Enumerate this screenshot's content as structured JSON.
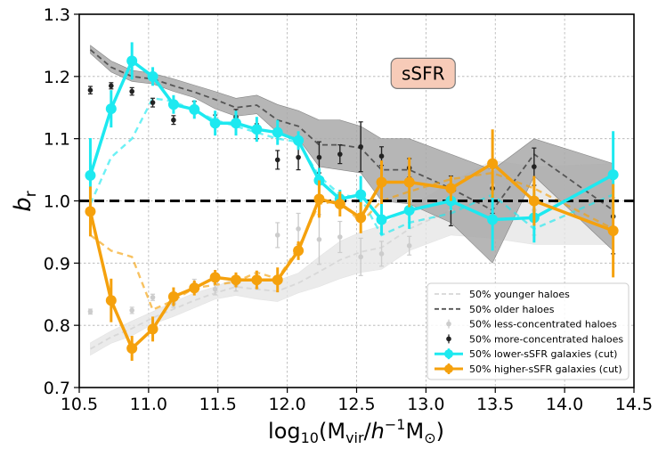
{
  "chart_data": {
    "type": "line",
    "xlabel": "log10(Mvir/h−1M⊙)",
    "xlabel_parts": {
      "prefix": "log",
      "sub10": "10",
      "open": "(M",
      "subvir": "vir",
      "slash": "/",
      "h": "h",
      "sup": "−1",
      "m": "M",
      "sun": "⊙",
      "close": ")"
    },
    "ylabel": "br",
    "ylabel_parts": {
      "main": "b",
      "sub": "r"
    },
    "xlim": [
      10.5,
      14.5
    ],
    "ylim": [
      0.7,
      1.3
    ],
    "xticks": [
      10.5,
      11.0,
      11.5,
      12.0,
      12.5,
      13.0,
      13.5,
      14.0,
      14.5
    ],
    "xtick_labels": [
      "10.5",
      "11.0",
      "11.5",
      "12.0",
      "12.5",
      "13.0",
      "13.5",
      "14.0",
      "14.5"
    ],
    "yticks": [
      0.7,
      0.8,
      0.9,
      1.0,
      1.1,
      1.2,
      1.3
    ],
    "ytick_labels": [
      "0.7",
      "0.8",
      "0.9",
      "1.0",
      "1.1",
      "1.2",
      "1.3"
    ],
    "grid": true,
    "legend_position": "lower-right",
    "annotation": {
      "text": "sSFR",
      "x": 12.98,
      "y": 1.205,
      "fill": "#f7cbb8",
      "edge": "#7a7a7a"
    },
    "reference_line": {
      "y": 1.0,
      "color": "#000000",
      "style": "dashed"
    },
    "series": [
      {
        "name": "50% younger haloes",
        "kind": "band_line",
        "color": "#e6e6e6",
        "line_color": "#d8d8d8",
        "x": [
          10.58,
          10.73,
          10.88,
          11.03,
          11.18,
          11.33,
          11.48,
          11.63,
          11.78,
          11.93,
          12.08,
          12.23,
          12.38,
          12.53,
          12.68,
          12.88,
          13.18,
          13.48,
          13.78,
          14.35
        ],
        "values": [
          0.762,
          0.781,
          0.795,
          0.812,
          0.826,
          0.84,
          0.852,
          0.862,
          0.858,
          0.855,
          0.868,
          0.886,
          0.905,
          0.918,
          0.925,
          0.955,
          0.985,
          1.005,
          0.995,
          1.0
        ],
        "band_lo": [
          0.752,
          0.771,
          0.783,
          0.802,
          0.814,
          0.828,
          0.842,
          0.848,
          0.842,
          0.838,
          0.852,
          0.862,
          0.875,
          0.885,
          0.89,
          0.92,
          0.945,
          0.94,
          0.93,
          0.93
        ],
        "band_hi": [
          0.772,
          0.791,
          0.807,
          0.822,
          0.838,
          0.852,
          0.862,
          0.876,
          0.874,
          0.872,
          0.884,
          0.91,
          0.935,
          0.95,
          0.96,
          0.99,
          1.03,
          1.065,
          1.055,
          1.06
        ]
      },
      {
        "name": "50% older haloes",
        "kind": "band_line",
        "color": "#a9a9a9",
        "line_color": "#555555",
        "x": [
          10.58,
          10.73,
          10.88,
          11.03,
          11.18,
          11.33,
          11.48,
          11.63,
          11.78,
          11.93,
          12.08,
          12.23,
          12.38,
          12.53,
          12.68,
          12.88,
          13.18,
          13.48,
          13.78,
          14.35
        ],
        "values": [
          1.243,
          1.215,
          1.2,
          1.196,
          1.185,
          1.175,
          1.163,
          1.15,
          1.154,
          1.13,
          1.12,
          1.09,
          1.09,
          1.085,
          1.05,
          1.05,
          1.02,
          0.985,
          1.075,
          0.985
        ],
        "band_lo": [
          1.237,
          1.207,
          1.192,
          1.188,
          1.176,
          1.166,
          1.148,
          1.136,
          1.14,
          1.11,
          1.1,
          1.055,
          1.05,
          1.045,
          1.0,
          0.995,
          0.965,
          0.9,
          1.04,
          0.92
        ],
        "band_hi": [
          1.25,
          1.225,
          1.21,
          1.205,
          1.196,
          1.186,
          1.176,
          1.165,
          1.17,
          1.155,
          1.145,
          1.13,
          1.13,
          1.12,
          1.1,
          1.1,
          1.075,
          1.05,
          1.1,
          1.06
        ]
      },
      {
        "name": "50% less-concentrated haloes",
        "kind": "errorbar_points",
        "color": "#cccccc",
        "x": [
          10.58,
          10.73,
          10.88,
          11.03,
          11.18,
          11.33,
          11.48,
          11.63,
          11.78,
          11.93,
          12.08,
          12.23,
          12.38,
          12.53,
          12.68,
          12.88,
          13.18,
          13.48,
          13.78,
          14.35
        ],
        "values": [
          0.822,
          0.838,
          0.824,
          0.845,
          0.835,
          0.866,
          0.858,
          0.865,
          0.872,
          0.945,
          0.955,
          0.938,
          0.942,
          0.91,
          0.915,
          0.928,
          1.005,
          1.025,
          0.985,
          0.975
        ],
        "err": [
          0.004,
          0.005,
          0.005,
          0.005,
          0.006,
          0.008,
          0.009,
          0.01,
          0.012,
          0.02,
          0.025,
          0.04,
          0.025,
          0.03,
          0.02,
          0.015,
          0.02,
          0.025,
          0.04,
          0.03
        ]
      },
      {
        "name": "50% more-concentrated haloes",
        "kind": "errorbar_points",
        "color": "#222222",
        "x": [
          10.58,
          10.73,
          10.88,
          11.03,
          11.18,
          11.33,
          11.48,
          11.63,
          11.78,
          11.93,
          12.08,
          12.23,
          12.38,
          12.53,
          12.68,
          12.88,
          13.18,
          13.48,
          13.78,
          14.35
        ],
        "values": [
          1.178,
          1.185,
          1.176,
          1.158,
          1.13,
          1.15,
          1.128,
          1.135,
          1.112,
          1.066,
          1.07,
          1.07,
          1.075,
          1.087,
          1.072,
          1.053,
          1.0,
          1.02,
          1.055,
          0.975
        ],
        "err": [
          0.006,
          0.005,
          0.006,
          0.007,
          0.007,
          0.01,
          0.01,
          0.012,
          0.012,
          0.015,
          0.02,
          0.025,
          0.015,
          0.04,
          0.015,
          0.015,
          0.04,
          0.04,
          0.03,
          0.06
        ]
      },
      {
        "name": "50% lower-sSFR galaxies (cut)",
        "kind": "errorbar_line",
        "color": "#1de9f0",
        "x": [
          10.58,
          10.73,
          10.88,
          11.03,
          11.18,
          11.33,
          11.48,
          11.63,
          11.78,
          11.93,
          12.08,
          12.23,
          12.38,
          12.53,
          12.68,
          12.88,
          13.18,
          13.48,
          13.78,
          14.35
        ],
        "values": [
          1.041,
          1.148,
          1.225,
          1.2,
          1.155,
          1.147,
          1.125,
          1.125,
          1.115,
          1.11,
          1.097,
          1.033,
          1.003,
          1.01,
          0.97,
          0.985,
          1.0,
          0.97,
          0.973,
          1.042
        ],
        "err": [
          0.06,
          0.03,
          0.03,
          0.015,
          0.015,
          0.015,
          0.02,
          0.02,
          0.02,
          0.02,
          0.015,
          0.02,
          0.015,
          0.03,
          0.025,
          0.03,
          0.015,
          0.05,
          0.04,
          0.07
        ],
        "dashed_x": [
          10.58,
          10.73,
          10.88,
          11.03,
          11.18,
          11.33,
          11.48,
          11.63,
          11.78,
          11.93,
          12.08,
          12.23,
          12.38,
          12.53,
          12.68,
          12.88,
          13.18,
          13.48,
          13.78,
          14.35
        ],
        "dashed_values": [
          0.995,
          1.07,
          1.1,
          1.165,
          1.16,
          1.145,
          1.13,
          1.12,
          1.11,
          1.1,
          1.095,
          1.04,
          1.01,
          1.005,
          0.945,
          0.965,
          0.98,
          1.01,
          0.955,
          1.01
        ]
      },
      {
        "name": "50% higher-sSFR galaxies (cut)",
        "kind": "errorbar_line",
        "color": "#f5a10d",
        "x": [
          10.58,
          10.73,
          10.88,
          11.03,
          11.18,
          11.33,
          11.48,
          11.63,
          11.78,
          11.93,
          12.08,
          12.23,
          12.38,
          12.53,
          12.68,
          12.88,
          13.18,
          13.48,
          13.78,
          14.35
        ],
        "values": [
          0.983,
          0.84,
          0.763,
          0.794,
          0.846,
          0.86,
          0.877,
          0.873,
          0.873,
          0.873,
          0.92,
          1.003,
          0.995,
          0.973,
          1.03,
          1.03,
          1.02,
          1.06,
          1.0,
          0.952
        ],
        "err": [
          0.04,
          0.035,
          0.02,
          0.02,
          0.015,
          0.012,
          0.012,
          0.012,
          0.015,
          0.02,
          0.015,
          0.03,
          0.02,
          0.025,
          0.035,
          0.04,
          0.02,
          0.055,
          0.04,
          0.075
        ],
        "dashed_x": [
          10.58,
          10.73,
          10.88,
          11.03,
          11.18,
          11.33,
          11.48,
          11.63,
          11.78,
          11.93,
          12.08,
          12.23,
          12.38,
          12.53,
          12.68,
          12.88,
          13.18,
          13.48,
          13.78,
          14.35
        ],
        "dashed_values": [
          0.945,
          0.92,
          0.91,
          0.825,
          0.84,
          0.86,
          0.865,
          0.87,
          0.885,
          0.875,
          0.925,
          0.995,
          1.0,
          0.965,
          1.0,
          1.015,
          1.035,
          1.045,
          1.02,
          0.955
        ]
      }
    ],
    "legend": [
      {
        "label": "50% younger haloes",
        "marker": "dashed",
        "color": "#d8d8d8"
      },
      {
        "label": "50% older haloes",
        "marker": "dashed",
        "color": "#555555"
      },
      {
        "label": "50% less-concentrated haloes",
        "marker": "dot-err",
        "color": "#cccccc"
      },
      {
        "label": "50% more-concentrated haloes",
        "marker": "dot-err",
        "color": "#222222"
      },
      {
        "label": "50% lower-sSFR galaxies (cut)",
        "marker": "line-dot",
        "color": "#1de9f0"
      },
      {
        "label": "50% higher-sSFR galaxies (cut)",
        "marker": "line-dot",
        "color": "#f5a10d"
      }
    ]
  }
}
